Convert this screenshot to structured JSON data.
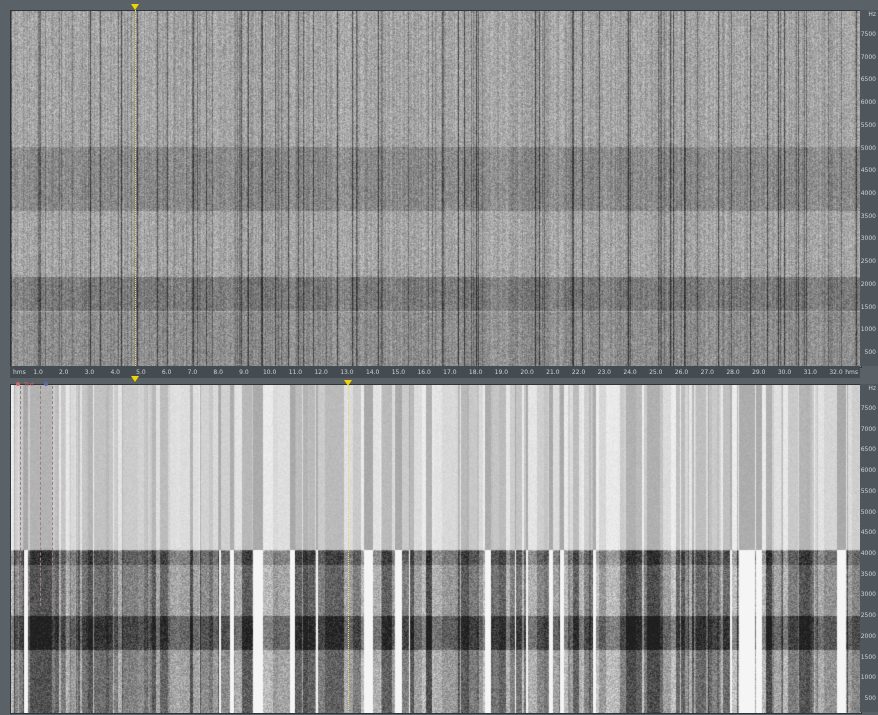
{
  "top_panel": {
    "freq_unit": "Hz",
    "freq_ticks": [
      "7500",
      "7000",
      "6500",
      "6000",
      "5500",
      "5000",
      "4500",
      "4000",
      "3500",
      "3000",
      "2500",
      "2000",
      "1500",
      "1000",
      "500"
    ],
    "time_unit": "hms",
    "time_ticks": [
      "1.0",
      "2.0",
      "3.0",
      "4.0",
      "5.0",
      "6.0",
      "7.0",
      "8.0",
      "9.0",
      "10.0",
      "11.0",
      "12.0",
      "13.0",
      "14.0",
      "15.0",
      "16.0",
      "17.0",
      "18.0",
      "19.0",
      "20.0",
      "21.0",
      "22.0",
      "23.0",
      "24.0",
      "25.0",
      "26.0",
      "27.0",
      "28.0",
      "29.0",
      "30.0",
      "31.0",
      "32.0"
    ]
  },
  "bottom_panel": {
    "freq_unit": "Hz",
    "freq_ticks": [
      "7500",
      "7000",
      "6500",
      "6000",
      "5500",
      "5000",
      "4500",
      "4000",
      "3500",
      "3000",
      "2500",
      "2000",
      "1500",
      "1000",
      "500"
    ],
    "marker_label": "Text"
  },
  "colors": {
    "background": "#4a5257",
    "cursor": "#f2d400",
    "axis_text": "#cfd5d9"
  }
}
